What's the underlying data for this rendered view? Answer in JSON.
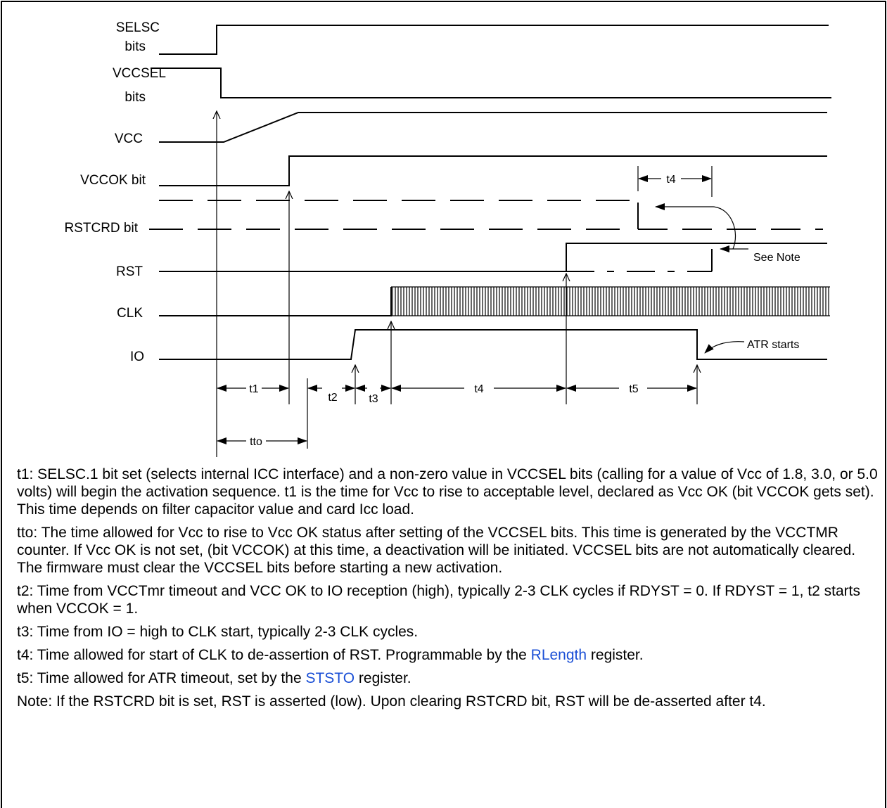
{
  "signals": {
    "selsc": "SELSC",
    "selsc_sub": "bits",
    "vccsel": "VCCSEL",
    "vccsel_sub": "bits",
    "vcc": "VCC",
    "vccok": "VCCOK bit",
    "rstcrd": "RSTCRD bit",
    "rst": "RST",
    "clk": "CLK",
    "io": "IO"
  },
  "annotations": {
    "see_note": "See Note",
    "atr_starts": "ATR starts"
  },
  "intervals": {
    "t1": "t1",
    "t2": "t2",
    "t3": "t3",
    "t4": "t4",
    "t5": "t5",
    "tto": "tto",
    "t4_upper": "t4"
  },
  "notes": {
    "t1": "t1:  SELSC.1 bit set (selects internal ICC interface) and a non-zero value in VCCSEL bits (calling for a value of Vcc of 1.8, 3.0, or 5.0 volts) will begin the activation sequence.  t1 is the time for Vcc to rise to acceptable level, declared as Vcc OK (bit VCCOK gets set).  This time depends on filter capacitor value and card Icc load.",
    "tto": "tto:  The time allowed for Vcc to rise to Vcc OK status after setting of the VCCSEL bits.  This time is generated by the VCCTMR counter.  If Vcc OK is not set, (bit VCCOK) at this time, a deactivation will be initiated.  VCCSEL bits are not automatically cleared.  The firmware must clear the VCCSEL bits before starting a new activation.",
    "t2": "t2:  Time from VCCTmr timeout and VCC OK to IO reception (high), typically 2-3 CLK cycles if RDYST = 0.  If RDYST = 1, t2 starts when VCCOK = 1.",
    "t3": "t3:  Time from IO = high to CLK start, typically 2-3 CLK cycles.",
    "t4_pre": "t4:  Time allowed for start of CLK to de-assertion of RST.  Programmable by the ",
    "t4_link": "RLength",
    "t4_post": " register.",
    "t5_pre": "t5:  Time allowed for ATR timeout, set by the ",
    "t5_link": "STSTO",
    "t5_post": " register.",
    "note": "Note:  If the RSTCRD bit is set, RST is asserted (low).  Upon clearing RSTCRD bit, RST will be de-asserted after t4."
  },
  "colors": {
    "link": "#1a4fd6",
    "line": "#000000"
  }
}
